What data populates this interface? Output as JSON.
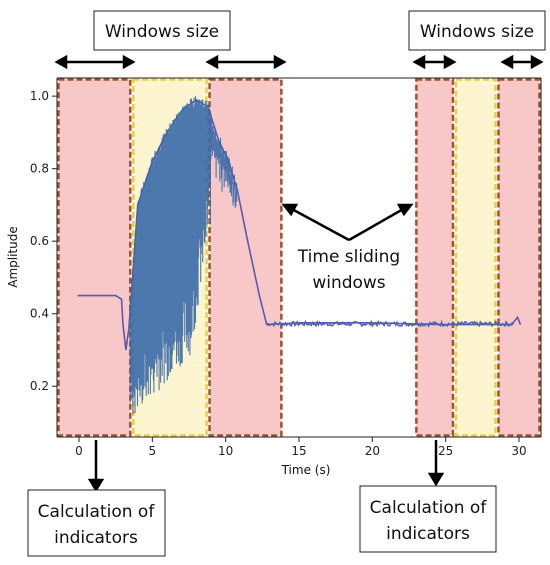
{
  "chart_data": {
    "type": "line",
    "xlabel": "Time (s)",
    "ylabel": "Amplitude",
    "xlim": [
      -1.5,
      31.5
    ],
    "ylim": [
      0.06,
      1.05
    ],
    "xticks": [
      0,
      5,
      10,
      15,
      20,
      25,
      30
    ],
    "yticks": [
      0.2,
      0.4,
      0.6,
      0.8,
      1.0
    ],
    "xtick_labels": [
      "0",
      "5",
      "10",
      "15",
      "20",
      "25",
      "30"
    ],
    "ytick_labels": [
      "0.2",
      "0.4",
      "0.6",
      "0.8",
      "1.0"
    ],
    "grid": false,
    "series_color": "#3a6aa8",
    "signal_summary": [
      {
        "x": -0.1,
        "y": 0.45
      },
      {
        "x": 2.5,
        "y": 0.45
      },
      {
        "x": 2.9,
        "y": 0.44
      },
      {
        "x": 3.0,
        "y": 0.37
      },
      {
        "x": 3.2,
        "y": 0.3
      },
      {
        "x": 3.4,
        "y": 0.36
      },
      {
        "x": 4.0,
        "y": 0.7
      },
      {
        "x": 5.0,
        "y": 0.82
      },
      {
        "x": 6.0,
        "y": 0.9
      },
      {
        "x": 7.0,
        "y": 0.96
      },
      {
        "x": 8.0,
        "y": 0.99
      },
      {
        "x": 8.8,
        "y": 0.97
      },
      {
        "x": 9.5,
        "y": 0.88
      },
      {
        "x": 10.2,
        "y": 0.82
      },
      {
        "x": 10.8,
        "y": 0.74
      },
      {
        "x": 11.5,
        "y": 0.6
      },
      {
        "x": 12.3,
        "y": 0.45
      },
      {
        "x": 12.8,
        "y": 0.37
      },
      {
        "x": 15.0,
        "y": 0.375
      },
      {
        "x": 20.0,
        "y": 0.375
      },
      {
        "x": 25.0,
        "y": 0.37
      },
      {
        "x": 29.5,
        "y": 0.37
      },
      {
        "x": 29.9,
        "y": 0.39
      },
      {
        "x": 30.1,
        "y": 0.37
      }
    ],
    "oscillation_envelope": {
      "x_start": 3.5,
      "x_end": 9.0,
      "lower_min": 0.1,
      "upper_max": 1.0
    },
    "windows": [
      {
        "x_start": -1.5,
        "x_end": 3.6,
        "kind": "calculation"
      },
      {
        "x_start": 3.6,
        "x_end": 8.8,
        "kind": "overlap"
      },
      {
        "x_start": 8.8,
        "x_end": 13.9,
        "kind": "calculation"
      },
      {
        "x_start": 22.9,
        "x_end": 25.6,
        "kind": "calculation"
      },
      {
        "x_start": 25.6,
        "x_end": 28.5,
        "kind": "overlap"
      },
      {
        "x_start": 28.5,
        "x_end": 31.5,
        "kind": "calculation"
      }
    ],
    "annotations": {
      "windows_size_left": "Windows size",
      "windows_size_right": "Windows size",
      "time_sliding_line1": "Time sliding",
      "time_sliding_line2": "windows",
      "calc_left_line1": "Calculation of",
      "calc_left_line2": "indicators",
      "calc_right_line1": "Calculation of",
      "calc_right_line2": "indicators"
    },
    "colors": {
      "calculation_fill": "#f8c8c8",
      "calculation_edge": "#a0522d",
      "overlap_fill": "#fdf4d0",
      "overlap_edge": "#e8d048",
      "axes": "#222222"
    }
  }
}
